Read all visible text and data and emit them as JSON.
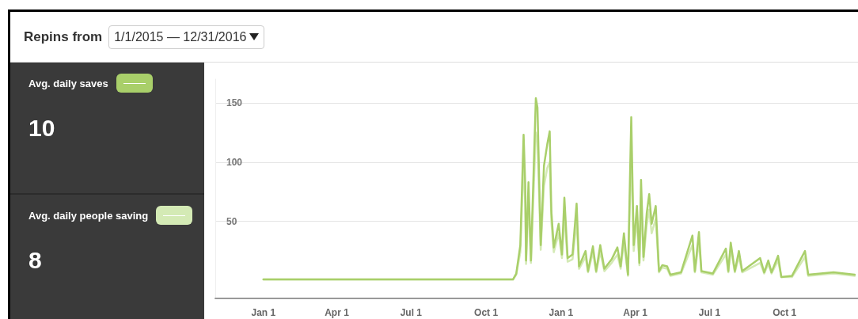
{
  "chart_data": {
    "type": "line",
    "title": "Repins from",
    "subtitle": "1/1/2015 — 12/31/2016",
    "annotations": [
      "10",
      "8"
    ],
    "x": [
      "2015-01-01",
      "2015-11-03",
      "2015-11-07",
      "2015-11-12",
      "2015-11-16",
      "2015-11-18",
      "2015-11-19",
      "2015-11-22",
      "2015-11-25",
      "2015-12-01",
      "2015-12-03",
      "2015-12-07",
      "2015-12-11",
      "2015-12-15",
      "2015-12-18",
      "2015-12-20",
      "2015-12-23",
      "2015-12-29",
      "2016-01-02",
      "2016-01-05",
      "2016-01-09",
      "2016-01-15",
      "2016-01-20",
      "2016-01-23",
      "2016-01-31",
      "2016-02-03",
      "2016-02-09",
      "2016-02-13",
      "2016-02-18",
      "2016-02-23",
      "2016-03-03",
      "2016-03-10",
      "2016-03-14",
      "2016-03-18",
      "2016-03-23",
      "2016-03-27",
      "2016-03-30",
      "2016-04-03",
      "2016-04-06",
      "2016-04-08",
      "2016-04-11",
      "2016-04-15",
      "2016-04-18",
      "2016-04-21",
      "2016-04-26",
      "2016-04-30",
      "2016-05-04",
      "2016-05-10",
      "2016-05-14",
      "2016-05-27",
      "2016-06-10",
      "2016-06-13",
      "2016-06-18",
      "2016-06-21",
      "2016-07-05",
      "2016-07-21",
      "2016-07-24",
      "2016-07-27",
      "2016-08-01",
      "2016-08-06",
      "2016-08-10",
      "2016-09-01",
      "2016-09-06",
      "2016-09-11",
      "2016-09-15",
      "2016-09-23",
      "2016-09-27",
      "2016-10-10",
      "2016-10-26",
      "2016-10-30",
      "2016-11-30",
      "2016-12-26"
    ],
    "series": [
      {
        "name": "Avg. daily saves",
        "color": "#a9cf6a",
        "values": [
          1,
          1,
          6,
          30,
          123,
          81,
          17,
          83,
          17,
          154,
          146,
          30,
          97,
          115,
          126,
          59,
          28,
          48,
          22,
          70,
          19,
          22,
          65,
          12,
          25,
          8,
          29,
          8,
          30,
          10,
          18,
          28,
          12,
          40,
          5,
          138,
          30,
          63,
          15,
          85,
          20,
          57,
          73,
          48,
          63,
          8,
          13,
          12,
          5,
          7,
          38,
          8,
          41,
          8,
          6,
          27,
          8,
          32,
          8,
          25,
          8,
          19,
          7,
          17,
          7,
          21,
          3,
          4,
          25,
          5,
          7,
          5
        ]
      },
      {
        "name": "Avg. daily people saving",
        "color": "#d4eab5",
        "values": [
          1,
          1,
          5,
          24,
          100,
          65,
          14,
          70,
          15,
          125,
          118,
          26,
          80,
          95,
          100,
          50,
          24,
          40,
          19,
          55,
          16,
          18,
          50,
          10,
          20,
          7,
          24,
          7,
          24,
          8,
          15,
          22,
          10,
          32,
          4,
          110,
          25,
          52,
          13,
          70,
          17,
          47,
          60,
          40,
          52,
          7,
          11,
          10,
          4,
          6,
          30,
          7,
          33,
          7,
          5,
          22,
          7,
          27,
          7,
          20,
          7,
          15,
          6,
          14,
          6,
          17,
          3,
          3,
          20,
          4,
          6,
          4
        ]
      }
    ],
    "xlim": [
      "2014-11-03",
      "2016-12-30"
    ],
    "xticks": [
      {
        "value": "2015-01-01",
        "label": "Jan 1"
      },
      {
        "value": "2015-04-01",
        "label": "Apr 1"
      },
      {
        "value": "2015-07-01",
        "label": "Jul 1"
      },
      {
        "value": "2015-10-01",
        "label": "Oct 1"
      },
      {
        "value": "2016-01-01",
        "label": "Jan 1"
      },
      {
        "value": "2016-04-01",
        "label": "Apr 1"
      },
      {
        "value": "2016-07-01",
        "label": "Jul 1"
      },
      {
        "value": "2016-10-01",
        "label": "Oct 1"
      }
    ],
    "ylim": [
      -15,
      170
    ],
    "yticks": [
      50,
      100,
      150
    ],
    "grid": "y",
    "legend": "left",
    "marker": "none",
    "line_style": "solid"
  }
}
